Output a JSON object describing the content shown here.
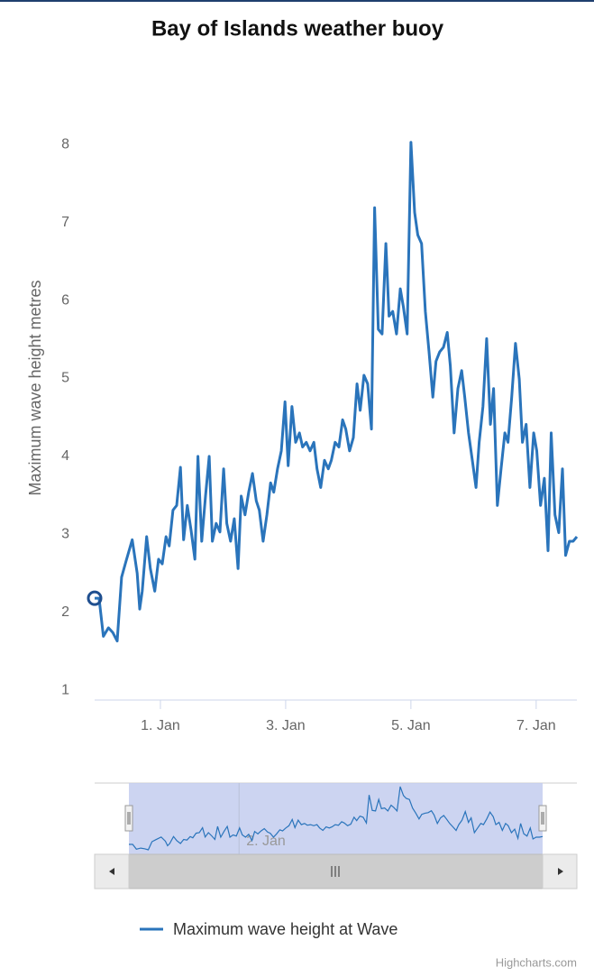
{
  "chart_data": {
    "type": "line",
    "title": "Bay of Islands weather buoy",
    "y_label": "Maximum wave height metres",
    "x": [
      -0.05,
      0.02,
      0.09,
      0.17,
      0.24,
      0.31,
      0.38,
      0.45,
      0.55,
      0.63,
      0.67,
      0.71,
      0.78,
      0.84,
      0.91,
      0.97,
      1.03,
      1.09,
      1.14,
      1.2,
      1.26,
      1.32,
      1.37,
      1.43,
      1.49,
      1.55,
      1.6,
      1.66,
      1.72,
      1.78,
      1.83,
      1.89,
      1.95,
      2.01,
      2.06,
      2.12,
      2.18,
      2.24,
      2.29,
      2.35,
      2.41,
      2.47,
      2.53,
      2.58,
      2.64,
      2.7,
      2.76,
      2.81,
      2.87,
      2.93,
      2.99,
      3.04,
      3.1,
      3.16,
      3.22,
      3.27,
      3.33,
      3.39,
      3.45,
      3.5,
      3.56,
      3.62,
      3.68,
      3.73,
      3.79,
      3.85,
      3.91,
      3.96,
      4.02,
      4.08,
      4.14,
      4.19,
      4.25,
      4.31,
      4.37,
      4.42,
      4.48,
      4.54,
      4.6,
      4.65,
      4.71,
      4.77,
      4.83,
      4.88,
      4.94,
      5.0,
      5.06,
      5.11,
      5.17,
      5.23,
      5.29,
      5.35,
      5.4,
      5.46,
      5.52,
      5.58,
      5.63,
      5.69,
      5.75,
      5.81,
      5.86,
      5.92,
      5.98,
      6.04,
      6.09,
      6.15,
      6.21,
      6.27,
      6.32,
      6.38,
      6.44,
      6.5,
      6.55,
      6.61,
      6.67,
      6.73,
      6.78,
      6.84,
      6.9,
      6.96,
      7.01,
      7.07,
      7.13,
      7.19,
      7.24,
      7.3,
      7.36,
      7.42,
      7.47,
      7.53,
      7.59,
      7.65
    ],
    "series": [
      {
        "name": "Maximum wave height at Wave",
        "color": "#2a74bb",
        "values": [
          2.18,
          2.18,
          1.69,
          1.8,
          1.74,
          1.63,
          2.45,
          2.65,
          2.93,
          2.5,
          2.04,
          2.27,
          2.97,
          2.56,
          2.27,
          2.68,
          2.62,
          2.97,
          2.85,
          3.31,
          3.37,
          3.86,
          2.93,
          3.37,
          3.05,
          2.68,
          4.0,
          2.91,
          3.49,
          4.0,
          2.91,
          3.14,
          3.03,
          3.84,
          3.14,
          2.91,
          3.2,
          2.56,
          3.49,
          3.25,
          3.54,
          3.78,
          3.43,
          3.31,
          2.91,
          3.25,
          3.66,
          3.54,
          3.84,
          4.07,
          4.7,
          3.88,
          4.64,
          4.18,
          4.3,
          4.12,
          4.18,
          4.07,
          4.18,
          3.84,
          3.6,
          3.95,
          3.84,
          3.95,
          4.18,
          4.12,
          4.47,
          4.35,
          4.07,
          4.24,
          4.93,
          4.59,
          5.04,
          4.93,
          4.35,
          7.19,
          5.63,
          5.57,
          6.73,
          5.8,
          5.86,
          5.57,
          6.15,
          5.92,
          5.57,
          8.03,
          7.13,
          6.84,
          6.73,
          5.86,
          5.34,
          4.76,
          5.22,
          5.34,
          5.4,
          5.59,
          5.16,
          4.3,
          4.87,
          5.1,
          4.76,
          4.3,
          3.95,
          3.6,
          4.18,
          4.64,
          5.51,
          4.41,
          4.87,
          3.37,
          3.84,
          4.3,
          4.18,
          4.76,
          5.45,
          4.99,
          4.18,
          4.41,
          3.6,
          4.3,
          4.07,
          3.37,
          3.72,
          2.79,
          4.3,
          3.25,
          3.02,
          3.84,
          2.73,
          2.91,
          2.91,
          2.97
        ]
      }
    ],
    "xlim": [
      -0.05,
      7.65
    ],
    "xticks": [
      {
        "value": 1,
        "label": "1. Jan"
      },
      {
        "value": 3,
        "label": "3. Jan"
      },
      {
        "value": 5,
        "label": "5. Jan"
      },
      {
        "value": 7,
        "label": "7. Jan"
      }
    ],
    "ylim": [
      0.9,
      8.2
    ],
    "yticks": [
      1,
      2,
      3,
      4,
      5,
      6,
      7,
      8
    ],
    "grid": false,
    "legend": "bottom",
    "navigator": {
      "xticks": [
        {
          "value": 2,
          "label": "2. Jan"
        }
      ]
    },
    "credits": "Highcharts.com"
  }
}
